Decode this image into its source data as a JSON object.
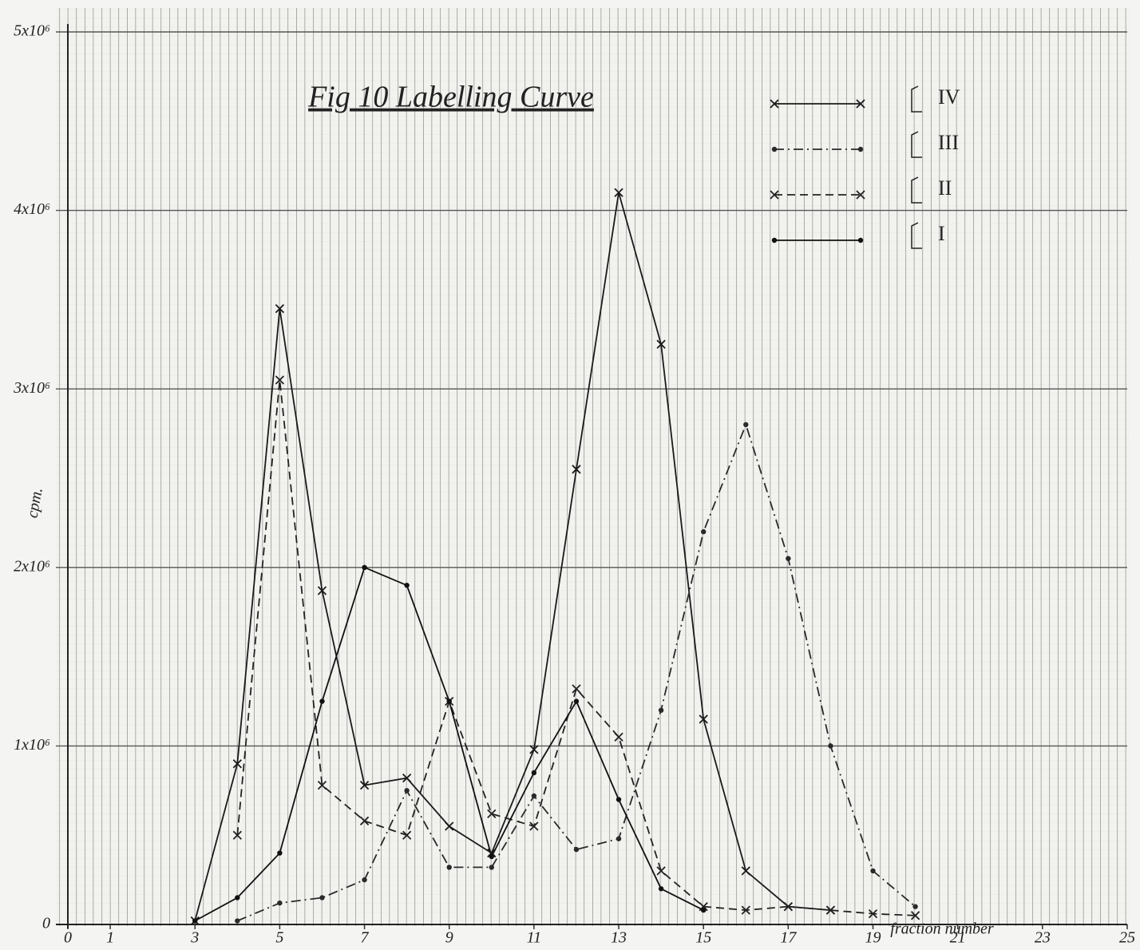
{
  "chart_data": {
    "type": "line",
    "title": "Fig 10 Labelling Curve",
    "x_label": "fraction number",
    "y_label": "cpm.",
    "x": [
      3,
      4,
      5,
      6,
      7,
      8,
      9,
      10,
      11,
      12,
      13,
      14,
      15,
      16,
      17,
      18,
      19,
      20
    ],
    "series": [
      {
        "name": "IV",
        "color": "#1a1a1a",
        "style": "solid",
        "marker": "x",
        "values": [
          20000,
          900000,
          3450000,
          1870000,
          780000,
          820000,
          550000,
          400000,
          980000,
          2550000,
          4100000,
          3250000,
          1150000,
          300000,
          100000,
          80000,
          null,
          null
        ]
      },
      {
        "name": "III",
        "color": "#2a2a2a",
        "style": "dashdot",
        "marker": "dot",
        "values": [
          null,
          20000,
          120000,
          150000,
          250000,
          750000,
          320000,
          320000,
          720000,
          420000,
          480000,
          1200000,
          2200000,
          2800000,
          2050000,
          1000000,
          300000,
          100000
        ]
      },
      {
        "name": "II",
        "color": "#222222",
        "style": "dashed",
        "marker": "x",
        "values": [
          null,
          500000,
          3050000,
          780000,
          580000,
          500000,
          1250000,
          620000,
          550000,
          1320000,
          1050000,
          300000,
          100000,
          80000,
          100000,
          80000,
          60000,
          50000
        ]
      },
      {
        "name": "I",
        "color": "#111111",
        "style": "solid",
        "marker": "dot",
        "values": [
          20000,
          150000,
          400000,
          1250000,
          2000000,
          1900000,
          1250000,
          380000,
          850000,
          1250000,
          700000,
          200000,
          80000,
          null,
          null,
          null,
          null,
          null
        ]
      }
    ],
    "xlim": [
      0,
      25
    ],
    "xticks": [
      0,
      1,
      3,
      5,
      7,
      9,
      11,
      13,
      15,
      17,
      19,
      21,
      23,
      25
    ],
    "ylim": [
      0,
      5000000
    ],
    "yticks": [
      0,
      {
        "value": 1000000,
        "label": "1x10⁶"
      },
      {
        "value": 2000000,
        "label": "2x10⁶"
      },
      {
        "value": 3000000,
        "label": "3x10⁶"
      },
      {
        "value": 4000000,
        "label": "4x10⁶"
      },
      {
        "value": 5000000,
        "label": "5x10⁶"
      }
    ],
    "grid": true,
    "legend": "top-right"
  }
}
